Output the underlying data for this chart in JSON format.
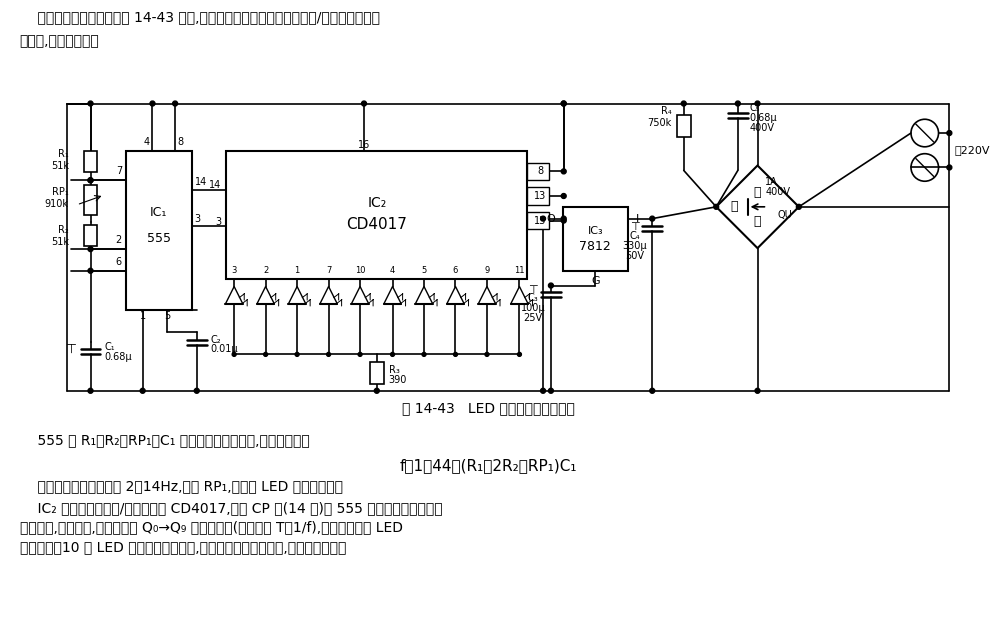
{
  "title": "图 14-43   LED 动态显示序列发生器",
  "bg_color": "#ffffff",
  "top_text1": "    该显示序列发生电路如图 14-43 所示,它以时基振荡电路和十进制计数/脉冲分配器为核",
  "top_text2": "心组成,外围元件少。",
  "bt0": "    555 和 R₁、R₂、RP₁、C₁ 组成一个多谐振荡器,其振荡频率为",
  "bt1": "f＝1．44／(R₁＋2R₂＋RP₁)C₁",
  "bt2": "    图示参数的振荡频率在 2～14Hz,调节 RP₁,以满足 LED 的动态变化。",
  "bt3": "    IC₂ 采用十进制计数/脉冲分配器 CD4017,它的 CP 端(14 脚)在 555 输出的脉冲序列上跳",
  "bt4": "沿触发下,进行计数,并依次输出 Q₀→Q₉ 高电平脉冲(脉冲宽度 T＝1/f),并驱动相应的 LED",
  "bt5": "依次发光。10 个 LED 可组成不同的图案,或排成直线或组成圆圈,进行动态显示。"
}
